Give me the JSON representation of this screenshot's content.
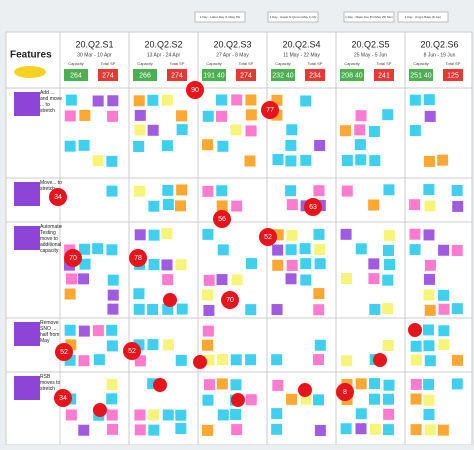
{
  "header": {
    "title": "Features"
  },
  "notes": [
    "1 Day - Labor Day (1 May) PH",
    "1 Day - Hasat Al Quran (May 1) Mx",
    "1 Day - Major Ave Prt (May 25) Mon",
    "1 Day - King's Bday (8 Jun)"
  ],
  "capacity_label": "Capacity",
  "total_label": "Total SP",
  "sprints": [
    {
      "name": "20.Q2.S1",
      "dates": "30 Mar - 10 Apr",
      "capacity": "264",
      "total": "274"
    },
    {
      "name": "20.Q2.S2",
      "dates": "13 Apr - 24 Apr",
      "capacity": "266",
      "total": "274"
    },
    {
      "name": "20.Q2.S3",
      "dates": "27 Apr - 8 May",
      "capacity": "191 40",
      "total": "274"
    },
    {
      "name": "20.Q2.S4",
      "dates": "11 May - 22 May",
      "capacity": "232 40",
      "total": "234"
    },
    {
      "name": "20.Q2.S5",
      "dates": "25 May - 5 Jun",
      "capacity": "208 40",
      "total": "241"
    },
    {
      "name": "20.Q2.S6",
      "dates": "8 Jun - 19 Jun",
      "capacity": "251 40",
      "total": "125"
    }
  ],
  "rows": [
    {
      "label": "Add ... and move ... to stretch"
    },
    {
      "label": "Move... to stretch"
    },
    {
      "label": "Automated Testing move to additional capacity"
    },
    {
      "label": "Remove SNO ... half from May"
    },
    {
      "label": "RSB moves to stretch"
    }
  ],
  "badges": [
    "90",
    "77",
    "34",
    "63",
    "56",
    "52",
    "70",
    "78",
    "70",
    "52",
    "52",
    "34",
    "8"
  ]
}
